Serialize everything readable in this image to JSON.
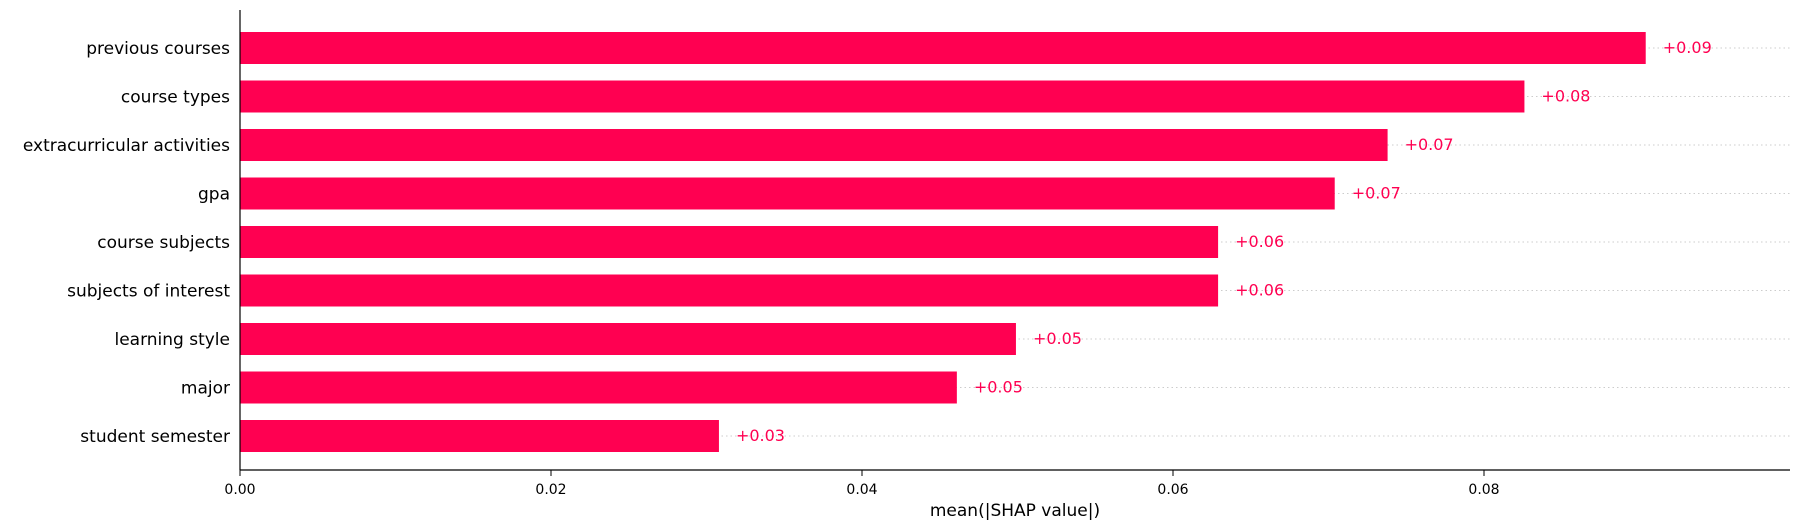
{
  "chart_data": {
    "type": "bar",
    "orientation": "horizontal",
    "title": "",
    "xlabel": "mean(|SHAP value|)",
    "ylabel": "",
    "xlim": [
      0,
      0.0997
    ],
    "xticks": [
      0.0,
      0.02,
      0.04,
      0.06,
      0.08
    ],
    "xtick_labels": [
      "0.00",
      "0.02",
      "0.04",
      "0.06",
      "0.08"
    ],
    "grid": "dotted horizontal guide lines per bar",
    "legend": "none",
    "bar_color": "#ff0051",
    "categories": [
      "previous courses",
      "course types",
      "extracurricular activities",
      "gpa",
      "course subjects",
      "subjects of interest",
      "learning style",
      "major",
      "student semester"
    ],
    "values": [
      0.0904,
      0.0826,
      0.0738,
      0.0704,
      0.0629,
      0.0629,
      0.0499,
      0.0461,
      0.0308
    ],
    "value_labels": [
      "+0.09",
      "+0.08",
      "+0.07",
      "+0.07",
      "+0.06",
      "+0.06",
      "+0.05",
      "+0.05",
      "+0.03"
    ]
  }
}
